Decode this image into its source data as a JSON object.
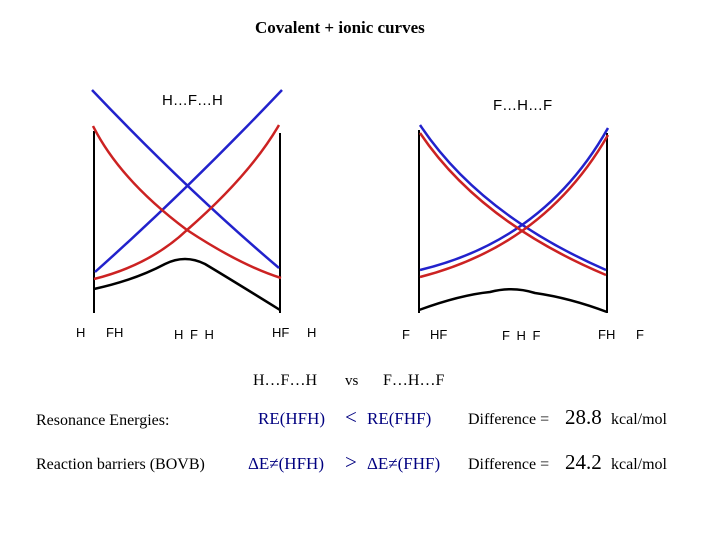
{
  "title": "Covalent + ionic curves",
  "left_panel": {
    "label": "H…F…H",
    "left_labels": [
      "H",
      "FH"
    ],
    "center_label": "H F H",
    "right_labels": [
      "HF",
      "H"
    ]
  },
  "right_panel": {
    "label": "F…H…F",
    "left_labels": [
      "F",
      "HF"
    ],
    "center_label": "F H F",
    "right_labels": [
      "FH",
      "F"
    ]
  },
  "comparison": {
    "left": "H…F…H",
    "vs": "vs",
    "right": "F…H…F"
  },
  "rows": [
    {
      "label": "Resonance Energies:",
      "left": "RE(HFH)",
      "operator": "<",
      "right": "RE(FHF)",
      "diff_label": "Difference =",
      "diff_value": "28.8",
      "diff_unit": "kcal/mol"
    },
    {
      "label": "Reaction barriers (BOVB)",
      "left": "ΔE≠(HFH)",
      "operator": ">",
      "right": "ΔE≠(FHF)",
      "diff_label": "Difference =",
      "diff_value": "24.2",
      "diff_unit": "kcal/mol"
    }
  ],
  "colors": {
    "covalent": "#2222cc",
    "ionic": "#cc2222",
    "adiabatic": "#000000",
    "axis": "#000000"
  }
}
